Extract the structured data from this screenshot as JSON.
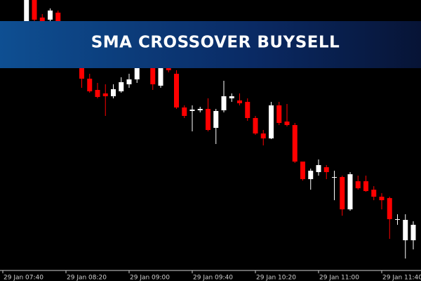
{
  "chart_data": {
    "type": "candlestick",
    "title": "SMA CROSSOVER BUYSELL",
    "categories": [
      "29 Jan 07:40",
      null,
      null,
      null,
      null,
      null,
      null,
      null,
      "29 Jan 08:20",
      null,
      null,
      null,
      null,
      null,
      null,
      null,
      "29 Jan 09:00",
      null,
      null,
      null,
      null,
      null,
      null,
      null,
      "29 Jan 09:40",
      null,
      null,
      null,
      null,
      null,
      null,
      null,
      "29 Jan 10:20",
      null,
      null,
      null,
      null,
      null,
      null,
      null,
      "29 Jan 11:00",
      null,
      null,
      null,
      null,
      null,
      null,
      null,
      "29 Jan 11:40",
      null,
      null,
      null,
      null
    ],
    "open": [
      340,
      330,
      320,
      355,
      400,
      375,
      372,
      382,
      355,
      335,
      315,
      288,
      272,
      267,
      263,
      270,
      280,
      287,
      310,
      305,
      278,
      303,
      295,
      247,
      242,
      243,
      245,
      218,
      243,
      260,
      257,
      255,
      232,
      210,
      203,
      250,
      227,
      222,
      170,
      145,
      155,
      162,
      147,
      148,
      102,
      142,
      142,
      130,
      120,
      118,
      87,
      58,
      58
    ],
    "high": [
      350,
      345,
      360,
      405,
      405,
      380,
      388,
      385,
      360,
      345,
      320,
      295,
      282,
      280,
      280,
      290,
      295,
      310,
      320,
      310,
      305,
      308,
      300,
      250,
      250,
      248,
      260,
      245,
      285,
      267,
      267,
      260,
      235,
      215,
      255,
      255,
      252,
      225,
      170,
      160,
      173,
      165,
      157,
      150,
      155,
      150,
      150,
      135,
      125,
      120,
      95,
      95,
      85
    ],
    "low": [
      325,
      315,
      310,
      350,
      360,
      365,
      360,
      350,
      330,
      310,
      275,
      268,
      260,
      235,
      260,
      268,
      275,
      282,
      305,
      272,
      275,
      297,
      245,
      232,
      213,
      240,
      213,
      195,
      240,
      255,
      250,
      228,
      208,
      193,
      202,
      222,
      220,
      168,
      143,
      130,
      150,
      145,
      115,
      93,
      100,
      130,
      127,
      115,
      102,
      60,
      80,
      32,
      45
    ],
    "close": [
      330,
      320,
      355,
      400,
      372,
      370,
      385,
      355,
      335,
      315,
      288,
      270,
      262,
      263,
      273,
      283,
      287,
      303,
      305,
      280,
      303,
      300,
      247,
      235,
      244,
      245,
      215,
      242,
      263,
      263,
      253,
      232,
      210,
      203,
      250,
      225,
      222,
      170,
      145,
      157,
      165,
      155,
      148,
      102,
      152,
      132,
      128,
      120,
      115,
      88,
      88,
      87,
      80
    ],
    "up_color": "#ffffff",
    "down_color": "#ff0000",
    "ylim": [
      0,
      400
    ]
  }
}
